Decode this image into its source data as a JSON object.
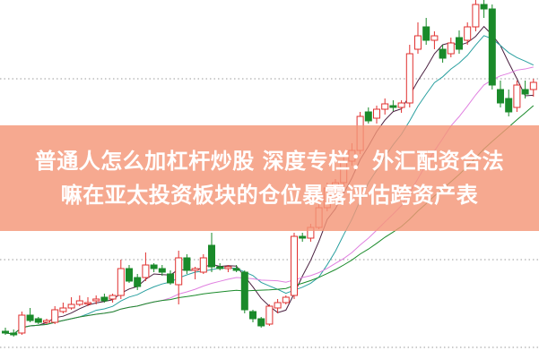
{
  "headline": {
    "line1": "普通人怎么加杠杆炒股 深度专栏：外汇配资合法",
    "line2": "嘛在亚太投资板块的仓位暴露评估跨资产表"
  },
  "colors": {
    "up": "#e0302f",
    "down": "#1a8a2a",
    "ma5": "#4a2040",
    "ma10": "#2aa0a0",
    "ma20": "#e080e0",
    "ma30": "#1a8a2a",
    "banner": "#f4a28a"
  },
  "chart_data": {
    "type": "candlestick",
    "title": "",
    "grid": "horizontal dotted",
    "moving_averages": [
      5,
      10,
      20,
      30
    ],
    "ohlc": [
      [
        30,
        34,
        26,
        28
      ],
      [
        28,
        32,
        24,
        26
      ],
      [
        28,
        52,
        26,
        48
      ],
      [
        48,
        56,
        40,
        42
      ],
      [
        44,
        46,
        38,
        40
      ],
      [
        40,
        44,
        38,
        42
      ],
      [
        40,
        58,
        38,
        54
      ],
      [
        52,
        62,
        50,
        56
      ],
      [
        56,
        68,
        54,
        60
      ],
      [
        60,
        70,
        58,
        64
      ],
      [
        62,
        68,
        58,
        62
      ],
      [
        64,
        70,
        60,
        66
      ],
      [
        68,
        72,
        62,
        64
      ],
      [
        66,
        72,
        62,
        70
      ],
      [
        70,
        110,
        66,
        100
      ],
      [
        100,
        104,
        84,
        86
      ],
      [
        90,
        94,
        76,
        80
      ],
      [
        90,
        118,
        86,
        104
      ],
      [
        104,
        106,
        96,
        100
      ],
      [
        100,
        104,
        92,
        96
      ],
      [
        94,
        98,
        82,
        84
      ],
      [
        82,
        120,
        60,
        112
      ],
      [
        112,
        116,
        94,
        98
      ],
      [
        98,
        102,
        88,
        100
      ],
      [
        96,
        116,
        94,
        112
      ],
      [
        126,
        140,
        96,
        102
      ],
      [
        102,
        106,
        98,
        100
      ],
      [
        100,
        104,
        96,
        102
      ],
      [
        100,
        104,
        96,
        98
      ],
      [
        96,
        98,
        50,
        54
      ],
      [
        52,
        54,
        40,
        44
      ],
      [
        44,
        46,
        34,
        36
      ],
      [
        38,
        60,
        36,
        58
      ],
      [
        56,
        66,
        50,
        62
      ],
      [
        62,
        70,
        60,
        68
      ],
      [
        70,
        140,
        66,
        136
      ],
      [
        136,
        140,
        130,
        134
      ],
      [
        134,
        150,
        130,
        146
      ],
      [
        146,
        172,
        144,
        168
      ],
      [
        168,
        196,
        164,
        190
      ],
      [
        190,
        200,
        186,
        196
      ],
      [
        196,
        225,
        190,
        220
      ],
      [
        220,
        240,
        215,
        232
      ],
      [
        232,
        275,
        228,
        270
      ],
      [
        275,
        280,
        262,
        265
      ],
      [
        268,
        282,
        262,
        278
      ],
      [
        278,
        290,
        272,
        284
      ],
      [
        282,
        288,
        276,
        280
      ],
      [
        280,
        288,
        274,
        285
      ],
      [
        285,
        350,
        280,
        340
      ],
      [
        345,
        375,
        340,
        360
      ],
      [
        370,
        380,
        350,
        355
      ],
      [
        355,
        365,
        345,
        360
      ],
      [
        345,
        350,
        330,
        335
      ],
      [
        340,
        358,
        336,
        352
      ],
      [
        358,
        366,
        340,
        345
      ],
      [
        355,
        375,
        350,
        370
      ],
      [
        370,
        400,
        365,
        395
      ],
      [
        395,
        400,
        380,
        390
      ],
      [
        390,
        395,
        300,
        305
      ],
      [
        300,
        310,
        280,
        285
      ],
      [
        290,
        300,
        270,
        275
      ],
      [
        280,
        310,
        275,
        305
      ],
      [
        300,
        310,
        290,
        295
      ],
      [
        300,
        312,
        292,
        308
      ]
    ]
  }
}
